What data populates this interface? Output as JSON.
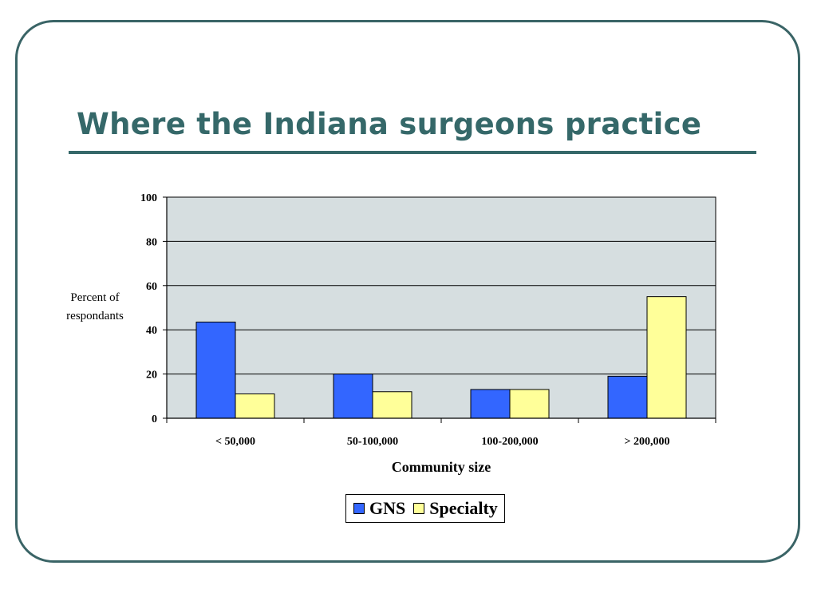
{
  "slide": {
    "title": "Where the Indiana surgeons practice"
  },
  "chart_data": {
    "type": "bar",
    "title": "",
    "xlabel": "Community size",
    "ylabel_lines": [
      "Percent of",
      "respondants"
    ],
    "categories": [
      "< 50,000",
      "50-100,000",
      "100-200,000",
      "> 200,000"
    ],
    "series": [
      {
        "name": "GNS",
        "color": "#3366ff",
        "values": [
          43.5,
          20,
          13,
          19
        ]
      },
      {
        "name": "Specialty",
        "color": "#ffff99",
        "values": [
          11,
          12,
          13,
          55
        ]
      }
    ],
    "ylim": [
      0,
      100
    ],
    "yticks": [
      "0",
      "20",
      "40",
      "60",
      "80",
      "100"
    ],
    "grid": true,
    "plot_background": "#d6dee0",
    "legend_position": "bottom"
  },
  "colors": {
    "title": "#356869",
    "frame": "#3a6466"
  }
}
